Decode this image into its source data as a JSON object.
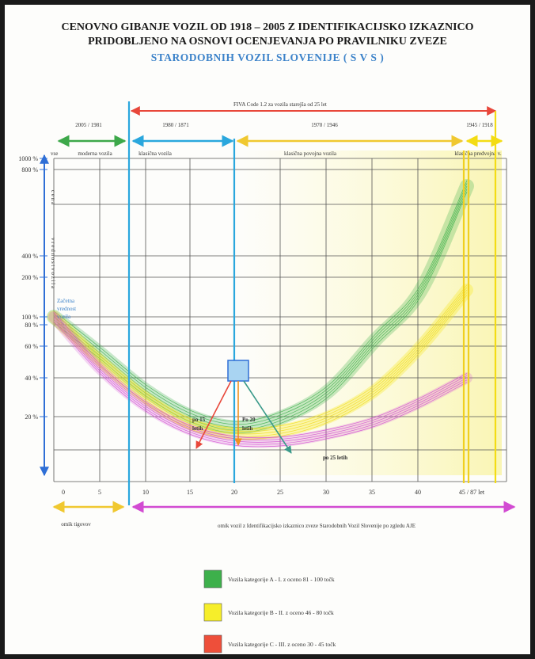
{
  "title": {
    "line1": "CENOVNO GIBANJE VOZIL  OD 1918 – 2005  Z IDENTIFIKACIJSKO IZKAZNICO",
    "line2": "PRIDOBLJENO NA OSNOVI OCENJEVANJA  PO PRAVILNIKU ZVEZE",
    "line3": "STARODOBNIH  VOZIL  SLOVENIJE   ( S V S )"
  },
  "fiva": {
    "label": "FIVA  Code 1.2   za vozila starejša od 25 let"
  },
  "eras": [
    {
      "years": "2005 / 1981",
      "name": "moderna vozila",
      "prefix": "vse",
      "color": "#3da84a"
    },
    {
      "years": "1980 / 1871",
      "name": "klasična vozila",
      "prefix": "",
      "color": "#2aa7dd"
    },
    {
      "years": "1970 / 1946",
      "name": "klasična povojna vozila",
      "prefix": "",
      "color": "#f0c830"
    },
    {
      "years": "1945 / 1918",
      "name": "klasična predvojna v.",
      "prefix": "",
      "color": "#f7e61a"
    }
  ],
  "yaxis": {
    "label": "c e n a",
    "label2": "v r e d n o s t   v o z i l a",
    "ticks": [
      "1000 %",
      "800 %",
      "400 %",
      "200 %",
      "100 %",
      "80 %",
      "60 %",
      "40 %",
      "20 %"
    ],
    "note": [
      "Začetna",
      "vrednost",
      "vozila"
    ]
  },
  "xaxis": {
    "ticks": [
      "0",
      "5",
      "10",
      "15",
      "20",
      "25",
      "30",
      "35",
      "40",
      "45 / 87 let"
    ],
    "left_label": "omik tigovov",
    "right_label": "omik vozil z Identifikacijsko izkaznico zveze Starodobnih Vozil Slovenije  po zgledu AJE"
  },
  "annotations": {
    "po15": [
      "po  15",
      "letih"
    ],
    "po20": [
      "Po  20",
      "letih"
    ],
    "po25": "po 25 letih"
  },
  "legend": [
    {
      "label": "Vozila kategorije A - I.   z  oceno  81 - 100 točk",
      "color": "#3db04b"
    },
    {
      "label": "Vozila kategorije B - II.  z oceno  46 - 80 točk",
      "color": "#f6ee2a"
    },
    {
      "label": "Vozila kategorije C - III. z oceno 30 - 45 točk",
      "color": "#ee4f3a"
    }
  ],
  "colors": {
    "green": "#3db04b",
    "yellow": "#f0dc20",
    "magenta": "#d24bd2",
    "blue": "#2f8fd6",
    "red": "#e8473a",
    "grid": "#444444"
  },
  "chart_data": {
    "type": "line",
    "x_unit": "let",
    "xlim": [
      0,
      45
    ],
    "series": [
      {
        "name": "Vozila kategorije A - I.",
        "x": [
          0,
          5,
          10,
          15,
          20,
          25,
          30,
          35,
          40,
          45
        ],
        "y_pct": [
          100,
          55,
          32,
          20,
          16,
          20,
          32,
          65,
          160,
          700
        ]
      },
      {
        "name": "Vozila kategorije B - II.",
        "x": [
          0,
          5,
          10,
          15,
          20,
          25,
          30,
          35,
          40,
          45
        ],
        "y_pct": [
          100,
          50,
          28,
          17,
          14,
          15,
          20,
          32,
          60,
          160
        ]
      },
      {
        "name": "Vozila kategorije C - III.",
        "x": [
          0,
          5,
          10,
          15,
          20,
          25,
          30,
          35,
          40,
          45
        ],
        "y_pct": [
          100,
          45,
          24,
          15,
          12,
          12,
          14,
          18,
          26,
          40
        ]
      }
    ]
  }
}
